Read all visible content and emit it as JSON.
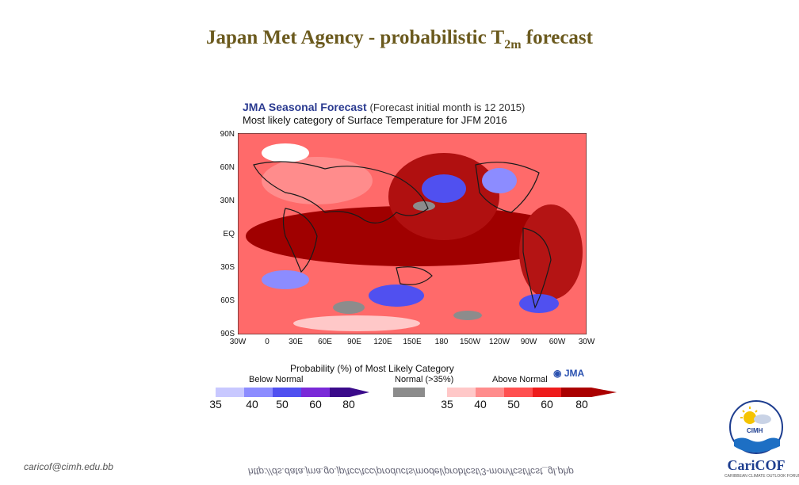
{
  "slide": {
    "title_pre": "Japan Met Agency - probabilistic T",
    "title_sub": "2m",
    "title_post": " forecast"
  },
  "forecast": {
    "title_main": "JMA Seasonal Forecast",
    "title_note": "(Forecast initial month is 12 2015)",
    "subtitle": "Most likely category of Surface Temperature for JFM 2016",
    "lat_labels": [
      "90N",
      "60N",
      "30N",
      "EQ",
      "30S",
      "60S",
      "90S"
    ],
    "lon_labels": [
      "30W",
      "0",
      "30E",
      "60E",
      "90E",
      "120E",
      "150E",
      "180",
      "150W",
      "120W",
      "90W",
      "60W",
      "30W"
    ]
  },
  "legend": {
    "title": "Probability (%) of Most Likely Category",
    "below_label": "Below Normal",
    "normal_label": "Normal (>35%)",
    "above_label": "Above Normal",
    "logo_text": "JMA",
    "below_ticks": [
      "35",
      "40",
      "50",
      "60",
      "80"
    ],
    "above_ticks": [
      "35",
      "40",
      "50",
      "60",
      "80"
    ],
    "colors": {
      "below": [
        "#c8c8ff",
        "#8c8cff",
        "#5050f0",
        "#7a2ad8",
        "#3a0a8a"
      ],
      "normal": "#8c8c8c",
      "above": [
        "#ffc8c8",
        "#ff8c8c",
        "#ff5050",
        "#ee1c1c",
        "#aa0000"
      ]
    }
  },
  "footer": {
    "email": "caricof@cimh.edu.bb",
    "url": "http://ds.data.jma.go.jp/tcc/tcc/products/model/probfcst/3-mon/fcst/fcst_gl.php"
  },
  "logo": {
    "cimh": "CIMH",
    "name": "CariCOF",
    "tagline": "CARIBBEAN CLIMATE OUTLOOK FORUM"
  }
}
